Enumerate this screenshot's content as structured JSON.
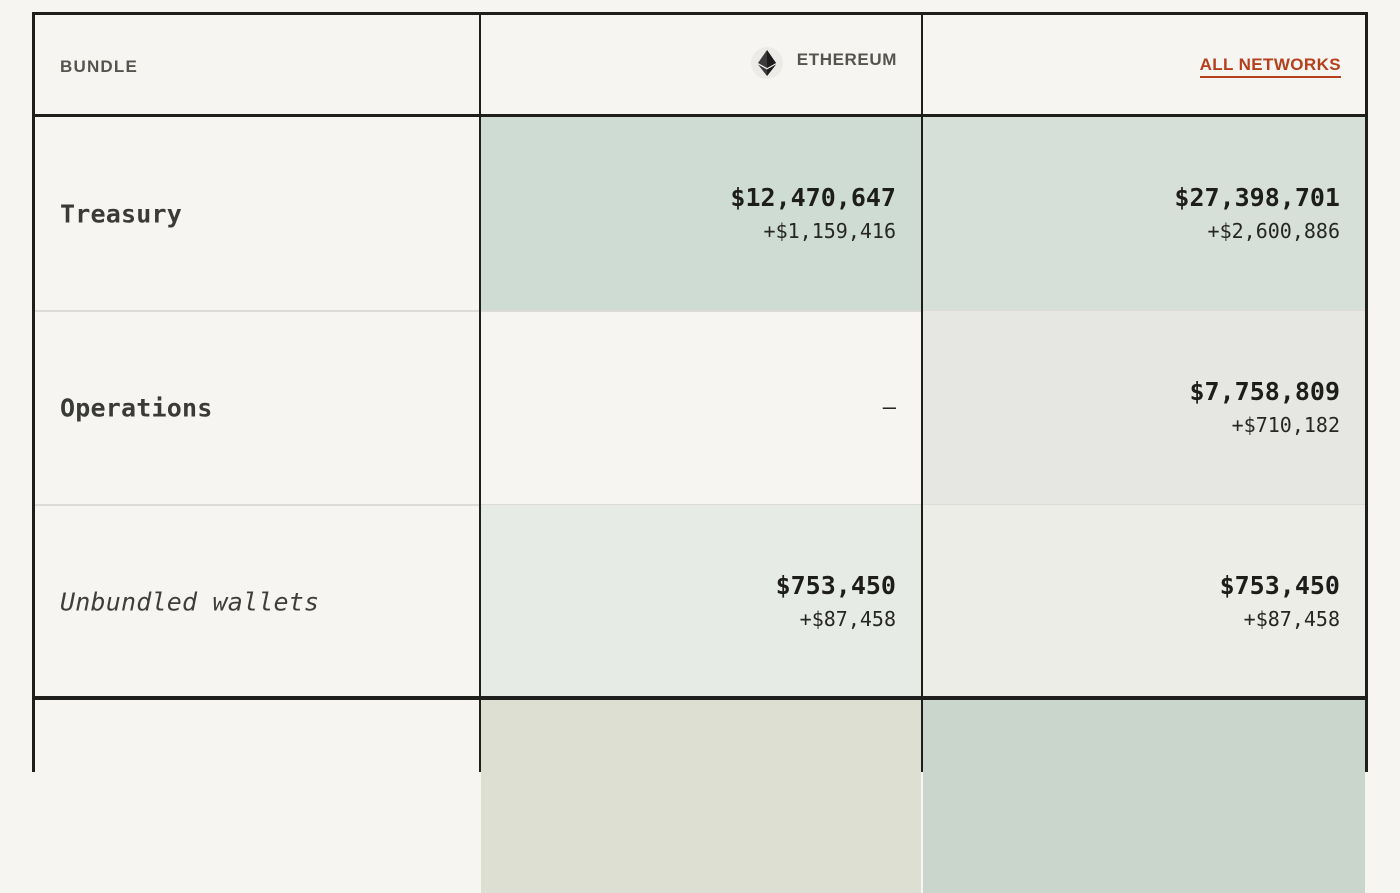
{
  "header": {
    "bundle_label": "BUNDLE",
    "ethereum_label": "ETHEREUM",
    "ethereum_icon": "ethereum-icon",
    "all_networks_label": "ALL NETWORKS"
  },
  "colors": {
    "accent": "#b5401c",
    "heat_strong": "#cfdcd3",
    "heat_medium": "#d6e0d8",
    "heat_light": "#e7ebe6",
    "heat_lighter": "#ebede6",
    "neutral_cell": "#e6e7e2",
    "background": "#f6f5f2"
  },
  "rows": [
    {
      "name": "Treasury",
      "ethereum": {
        "value": "$12,470,647",
        "change": "+$1,159,416"
      },
      "all_networks": {
        "value": "$27,398,701",
        "change": "+$2,600,886"
      }
    },
    {
      "name": "Operations",
      "ethereum": {
        "empty": "—"
      },
      "all_networks": {
        "value": "$7,758,809",
        "change": "+$710,182"
      }
    },
    {
      "name": "Unbundled wallets",
      "ethereum": {
        "value": "$753,450",
        "change": "+$87,458"
      },
      "all_networks": {
        "value": "$753,450",
        "change": "+$87,458"
      }
    }
  ]
}
